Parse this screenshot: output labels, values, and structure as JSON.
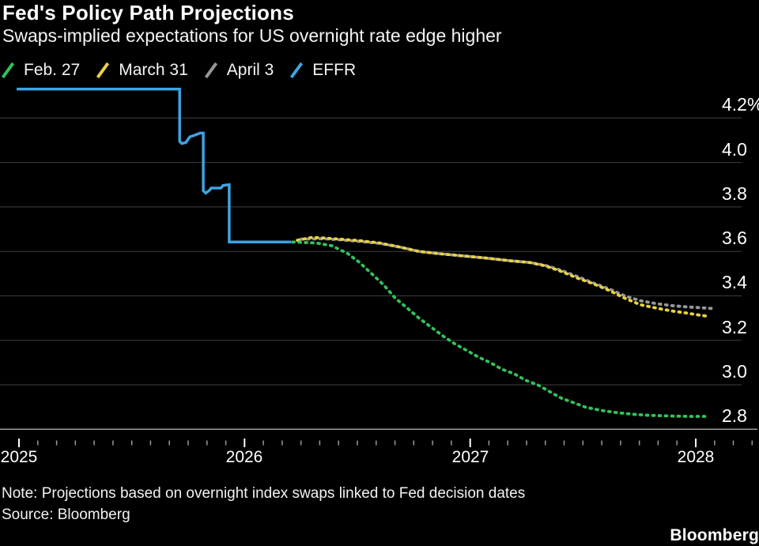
{
  "header": {
    "title": "Fed's Policy Path Projections",
    "subtitle": "Swaps-implied expectations for US overnight rate edge higher"
  },
  "legend": [
    {
      "label": "Feb. 27",
      "color": "#33c05a"
    },
    {
      "label": "March 31",
      "color": "#e9d23f"
    },
    {
      "label": "April 3",
      "color": "#97979a"
    },
    {
      "label": "EFFR",
      "color": "#3fa3e0"
    }
  ],
  "colors": {
    "background": "#000000",
    "grid": "#3f4044",
    "axis": "#9a9a9a",
    "tick_minor": "#9a9a9a",
    "tick_major": "#ffffff",
    "text": "#ffffff"
  },
  "chart_data": {
    "type": "line",
    "title": "Fed's Policy Path Projections",
    "subtitle": "Swaps-implied expectations for US overnight rate edge higher",
    "x_axis": {
      "range": [
        2024.92,
        2028.28
      ],
      "ticks": [
        {
          "value": 2025,
          "label": "2025"
        },
        {
          "value": 2026,
          "label": "2026"
        },
        {
          "value": 2027,
          "label": "2027"
        },
        {
          "value": 2028,
          "label": "2028"
        }
      ],
      "minor_tick_interval_years": 0.0833
    },
    "y_axis": {
      "unit": "%",
      "range": [
        2.8,
        4.2
      ],
      "ticks": [
        {
          "value": 4.2,
          "label": "4.2%"
        },
        {
          "value": 4.0,
          "label": "4.0"
        },
        {
          "value": 3.8,
          "label": "3.8"
        },
        {
          "value": 3.6,
          "label": "3.6"
        },
        {
          "value": 3.4,
          "label": "3.4"
        },
        {
          "value": 3.2,
          "label": "3.2"
        },
        {
          "value": 3.0,
          "label": "3.0"
        },
        {
          "value": 2.8,
          "label": "2.8"
        }
      ]
    },
    "series": [
      {
        "name": "April 3",
        "color": "#97979a",
        "style": "dotted",
        "points": [
          [
            2026.25,
            3.655
          ],
          [
            2026.35,
            3.657
          ],
          [
            2026.423,
            3.652
          ],
          [
            2026.51,
            3.645
          ],
          [
            2026.598,
            3.636
          ],
          [
            2026.686,
            3.62
          ],
          [
            2026.773,
            3.6
          ],
          [
            2026.861,
            3.59
          ],
          [
            2026.966,
            3.58
          ],
          [
            2027.071,
            3.57
          ],
          [
            2027.176,
            3.558
          ],
          [
            2027.264,
            3.55
          ],
          [
            2027.334,
            3.537
          ],
          [
            2027.404,
            3.515
          ],
          [
            2027.475,
            3.487
          ],
          [
            2027.545,
            3.458
          ],
          [
            2027.615,
            3.432
          ],
          [
            2027.685,
            3.4
          ],
          [
            2027.755,
            3.378
          ],
          [
            2027.825,
            3.365
          ],
          [
            2027.895,
            3.356
          ],
          [
            2027.965,
            3.35
          ],
          [
            2028.018,
            3.347
          ],
          [
            2028.08,
            3.343
          ]
        ]
      },
      {
        "name": "March 31",
        "color": "#e9d23f",
        "style": "dotted",
        "points": [
          [
            2026.234,
            3.65
          ],
          [
            2026.3,
            3.663
          ],
          [
            2026.353,
            3.66
          ],
          [
            2026.423,
            3.655
          ],
          [
            2026.51,
            3.648
          ],
          [
            2026.598,
            3.638
          ],
          [
            2026.686,
            3.62
          ],
          [
            2026.773,
            3.6
          ],
          [
            2026.861,
            3.59
          ],
          [
            2026.966,
            3.58
          ],
          [
            2027.071,
            3.57
          ],
          [
            2027.176,
            3.558
          ],
          [
            2027.264,
            3.55
          ],
          [
            2027.334,
            3.535
          ],
          [
            2027.404,
            3.51
          ],
          [
            2027.475,
            3.48
          ],
          [
            2027.545,
            3.455
          ],
          [
            2027.615,
            3.425
          ],
          [
            2027.685,
            3.39
          ],
          [
            2027.755,
            3.36
          ],
          [
            2027.825,
            3.345
          ],
          [
            2027.895,
            3.332
          ],
          [
            2027.965,
            3.322
          ],
          [
            2028.018,
            3.313
          ],
          [
            2028.063,
            3.307
          ]
        ]
      },
      {
        "name": "Feb. 27",
        "color": "#33c05a",
        "style": "dotted",
        "points": [
          [
            2026.213,
            3.642
          ],
          [
            2026.318,
            3.638
          ],
          [
            2026.388,
            3.625
          ],
          [
            2026.458,
            3.59
          ],
          [
            2026.51,
            3.55
          ],
          [
            2026.563,
            3.5
          ],
          [
            2026.616,
            3.45
          ],
          [
            2026.668,
            3.39
          ],
          [
            2026.721,
            3.345
          ],
          [
            2026.773,
            3.3
          ],
          [
            2026.826,
            3.26
          ],
          [
            2026.879,
            3.22
          ],
          [
            2026.931,
            3.185
          ],
          [
            2026.984,
            3.155
          ],
          [
            2027.036,
            3.125
          ],
          [
            2027.089,
            3.1
          ],
          [
            2027.141,
            3.07
          ],
          [
            2027.194,
            3.05
          ],
          [
            2027.247,
            3.02
          ],
          [
            2027.299,
            3.0
          ],
          [
            2027.352,
            2.97
          ],
          [
            2027.404,
            2.94
          ],
          [
            2027.457,
            2.92
          ],
          [
            2027.51,
            2.9
          ],
          [
            2027.58,
            2.885
          ],
          [
            2027.65,
            2.875
          ],
          [
            2027.72,
            2.868
          ],
          [
            2027.79,
            2.863
          ],
          [
            2027.878,
            2.86
          ],
          [
            2027.965,
            2.858
          ],
          [
            2028.06,
            2.858
          ]
        ]
      },
      {
        "name": "EFFR",
        "color": "#3fa3e0",
        "style": "solid",
        "points": [
          [
            2024.99,
            4.33
          ],
          [
            2025.712,
            4.33
          ],
          [
            2025.712,
            4.095
          ],
          [
            2025.722,
            4.085
          ],
          [
            2025.74,
            4.09
          ],
          [
            2025.757,
            4.115
          ],
          [
            2025.78,
            4.123
          ],
          [
            2025.803,
            4.132
          ],
          [
            2025.817,
            4.132
          ],
          [
            2025.817,
            3.872
          ],
          [
            2025.828,
            3.862
          ],
          [
            2025.845,
            3.875
          ],
          [
            2025.852,
            3.885
          ],
          [
            2025.895,
            3.885
          ],
          [
            2025.905,
            3.897
          ],
          [
            2025.932,
            3.9
          ],
          [
            2025.932,
            3.642
          ],
          [
            2026.206,
            3.642
          ]
        ]
      }
    ],
    "legend_position": "top-left",
    "grid": "horizontal-only"
  },
  "footer": {
    "note": "Note: Projections based on overnight index swaps linked to Fed decision dates",
    "source": "Source: Bloomberg",
    "logo": "Bloomberg"
  }
}
